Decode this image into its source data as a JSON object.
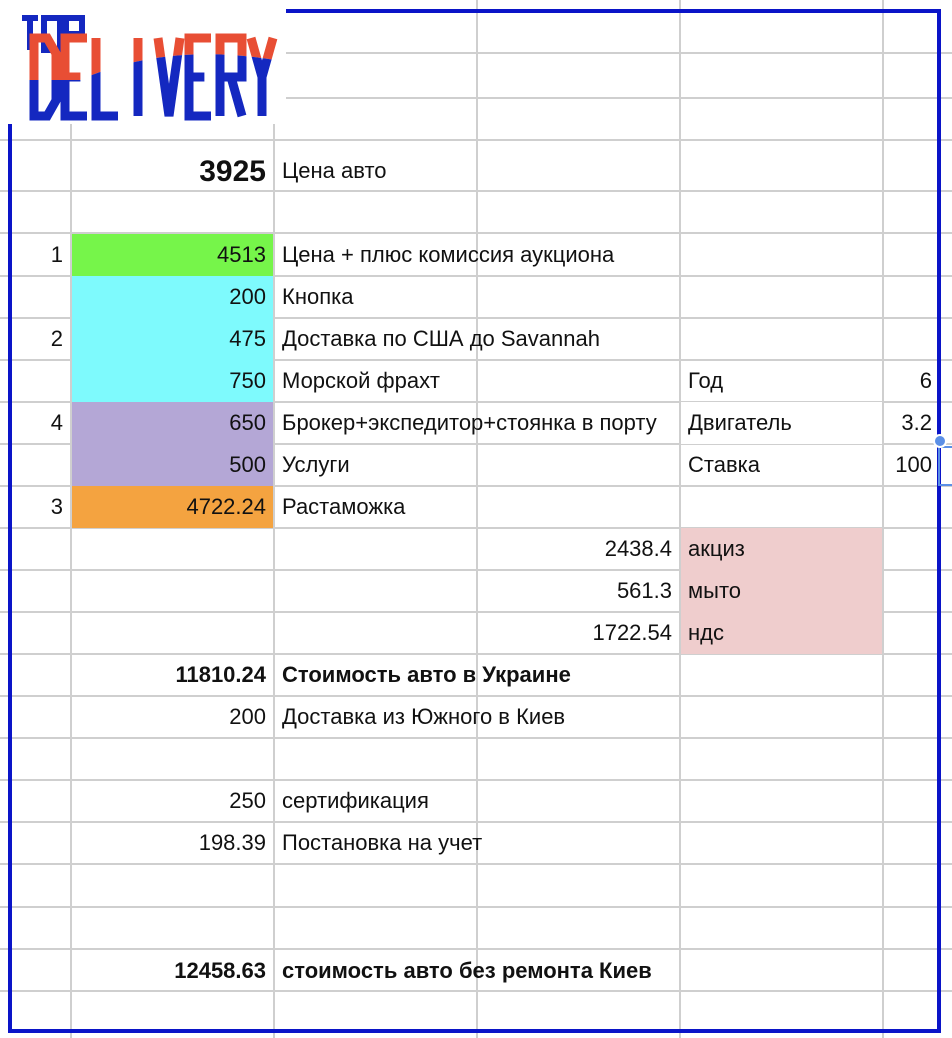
{
  "logo": {
    "text_top": "TOP",
    "text_main": "DELIVERY",
    "colors": {
      "blue": "#1428c0",
      "red": "#e84e34"
    }
  },
  "colors": {
    "frame": "#0a14c8",
    "green": "#76f54a",
    "cyan": "#7efafd",
    "purple": "#b4a7d6",
    "orange": "#f4a340",
    "pink": "#efcdcd"
  },
  "rows": [
    {
      "num": "",
      "value": "3925",
      "label": "Цена авто",
      "bold_value": true
    },
    {
      "num": "1",
      "value": "4513",
      "label": "Цена + плюс комиссия аукциона"
    },
    {
      "num": "",
      "value": "200",
      "label": "Кнопка"
    },
    {
      "num": "2",
      "value": "475",
      "label": "Доставка по США до Savannah"
    },
    {
      "num": "",
      "value": "750",
      "label": "Морской фрахт"
    },
    {
      "num": "4",
      "value": "650",
      "label": "Брокер+экспедитор+стоянка в порту"
    },
    {
      "num": "",
      "value": "500",
      "label": "Услуги"
    },
    {
      "num": "3",
      "value": "4722.24",
      "label": "Растаможка"
    },
    {
      "num": "",
      "value": "11810.24",
      "label": "Стоимость авто в Украине"
    },
    {
      "num": "",
      "value": "200",
      "label": "Доставка из Южного в Киев"
    },
    {
      "num": "",
      "value": "250",
      "label": "сертификация"
    },
    {
      "num": "",
      "value": "198.39",
      "label": "Постановка на учет"
    },
    {
      "num": "",
      "value": "12458.63",
      "label": "стоимость авто без ремонта Киев"
    }
  ],
  "params": [
    {
      "label": "Год",
      "value": "6"
    },
    {
      "label": "Двигатель",
      "value": "3.2"
    },
    {
      "label": "Ставка",
      "value": "100"
    }
  ],
  "customs": [
    {
      "value": "2438.4",
      "label": "акциз"
    },
    {
      "value": "561.3",
      "label": "мыто"
    },
    {
      "value": "1722.54",
      "label": "ндс"
    }
  ]
}
